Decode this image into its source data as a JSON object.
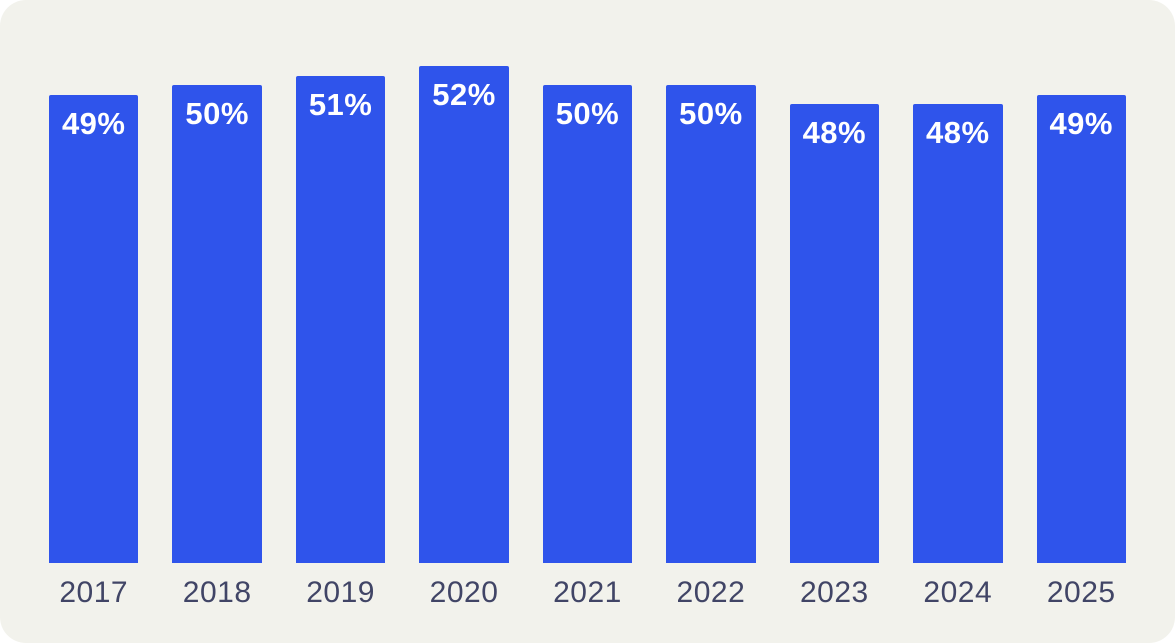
{
  "canvas": {
    "background_color": "#F2F2EC"
  },
  "chart_data": {
    "type": "bar",
    "title": "",
    "xlabel": "",
    "ylabel": "",
    "categories": [
      "2017",
      "2018",
      "2019",
      "2020",
      "2021",
      "2022",
      "2023",
      "2024",
      "2025"
    ],
    "values": [
      49,
      50,
      51,
      52,
      50,
      50,
      48,
      48,
      49
    ],
    "value_labels": [
      "49%",
      "50%",
      "51%",
      "52%",
      "50%",
      "50%",
      "48%",
      "48%",
      "49%"
    ],
    "ylim": [
      0,
      52
    ],
    "grid": false,
    "legend": false,
    "bar_color": "#2F54EB",
    "value_label_color": "#FFFFFF",
    "axis_label_color": "#414566"
  }
}
